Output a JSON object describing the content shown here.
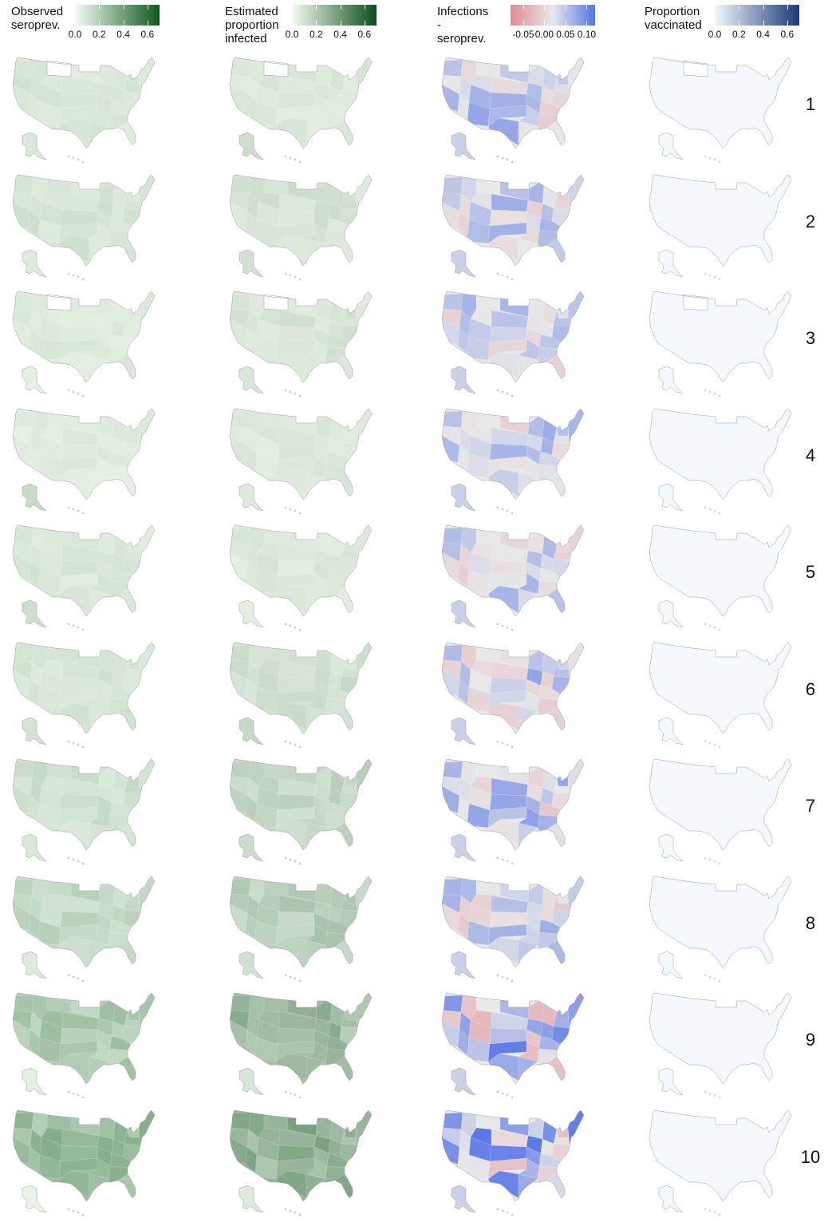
{
  "legends": [
    {
      "title": "Observed\nseroprev.",
      "ticks": [
        "0.0",
        "0.2",
        "0.4",
        "0.6"
      ],
      "tick_values": [
        0,
        0.2,
        0.4,
        0.6
      ],
      "range": [
        0,
        0.7
      ],
      "colors": [
        "#f4fbf1",
        "#0d5a1f"
      ]
    },
    {
      "title": "Estimated\nproportion\ninfected",
      "ticks": [
        "0.0",
        "0.2",
        "0.4",
        "0.6"
      ],
      "tick_values": [
        0,
        0.2,
        0.4,
        0.6
      ],
      "range": [
        0,
        0.7
      ],
      "colors": [
        "#f4fbf1",
        "#0b4d1b"
      ]
    },
    {
      "title": "Infections -\nseroprev.",
      "ticks": [
        "-0.05",
        "0.00",
        "0.05",
        "0.10"
      ],
      "tick_values": [
        -0.05,
        0,
        0.05,
        0.1
      ],
      "range": [
        -0.08,
        0.12
      ],
      "colors": [
        "#e38a96",
        "#e8e8e8",
        "#5472e6"
      ]
    },
    {
      "title": "Proportion\nvaccinated",
      "ticks": [
        "0.0",
        "0.2",
        "0.4",
        "0.6"
      ],
      "tick_values": [
        0,
        0.2,
        0.4,
        0.6
      ],
      "range": [
        0,
        0.7
      ],
      "colors": [
        "#f2f7fc",
        "#1a3a7a"
      ]
    }
  ],
  "rows": [
    {
      "label": "1"
    },
    {
      "label": "2"
    },
    {
      "label": "3"
    },
    {
      "label": "4"
    },
    {
      "label": "5"
    },
    {
      "label": "6"
    },
    {
      "label": "7"
    },
    {
      "label": "8"
    },
    {
      "label": "9"
    },
    {
      "label": "10"
    }
  ],
  "colors": {
    "map_outline": "#9a9a9a",
    "vaccinated_fill": "#f3f8fd"
  },
  "row_intensity": {
    "observed": [
      0.08,
      0.09,
      0.07,
      0.06,
      0.08,
      0.09,
      0.11,
      0.14,
      0.2,
      0.26
    ],
    "estimated": [
      0.07,
      0.09,
      0.08,
      0.07,
      0.07,
      0.1,
      0.14,
      0.17,
      0.24,
      0.28
    ],
    "difference_spread": [
      0.04,
      0.035,
      0.035,
      0.035,
      0.04,
      0.04,
      0.045,
      0.045,
      0.07,
      0.07
    ]
  }
}
